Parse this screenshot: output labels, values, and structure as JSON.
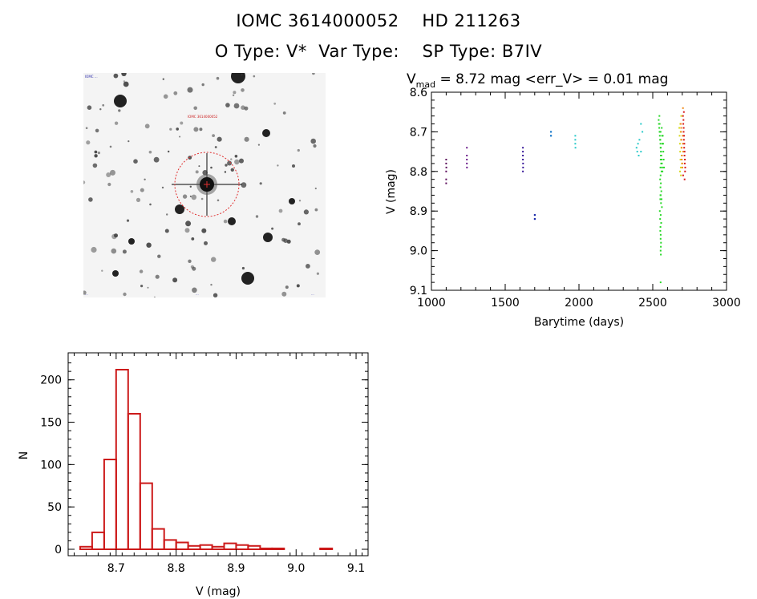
{
  "header": {
    "line1": "IOMC 3614000052    HD 211263",
    "line2": "O Type: V*  Var Type:    SP Type: B7IV"
  },
  "finder_chart": {
    "corner_labels": {
      "top_left": "IOMC ...",
      "target_label": "IOMC 3614000052",
      "bottom_left": "...",
      "bottom_center": "...",
      "bottom_right": "..."
    },
    "colors": {
      "background": "#f4f4f4",
      "stars": "#222222",
      "circle": "#e03030"
    }
  },
  "chart_data": [
    {
      "type": "scatter",
      "title_main": "V",
      "title_sub": "mad",
      "title_rest": " = 8.72 mag <err_V> = 0.01 mag",
      "xlabel": "Barytime (days)",
      "ylabel": "V (mag)",
      "xlim": [
        1000,
        3000
      ],
      "ylim": [
        8.6,
        9.1
      ],
      "y_inverted": true,
      "x_ticks": [
        1000,
        1500,
        2000,
        2500,
        3000
      ],
      "x_tick_labels": [
        "1000",
        "1500",
        "2000",
        "2500",
        "3000"
      ],
      "y_ticks": [
        8.6,
        8.7,
        8.8,
        8.9,
        9.0,
        9.1
      ],
      "y_tick_labels": [
        "8.6",
        "8.7",
        "8.8",
        "8.9",
        "9.0",
        "9.1"
      ],
      "series": [
        {
          "color": "#5a0a5a",
          "x": [
            1100,
            1100,
            1100,
            1100,
            1100,
            1101
          ],
          "y": [
            8.77,
            8.78,
            8.8,
            8.82,
            8.83,
            8.79
          ]
        },
        {
          "color": "#6a1a8a",
          "x": [
            1240,
            1240,
            1240,
            1240,
            1241
          ],
          "y": [
            8.74,
            8.76,
            8.77,
            8.78,
            8.79
          ]
        },
        {
          "color": "#3a1a9a",
          "x": [
            1620,
            1620,
            1620,
            1620,
            1621,
            1621,
            1620
          ],
          "y": [
            8.74,
            8.75,
            8.76,
            8.77,
            8.78,
            8.79,
            8.8
          ]
        },
        {
          "color": "#1a2aaa",
          "x": [
            1700,
            1701,
            1700,
            1701
          ],
          "y": [
            8.91,
            8.92,
            8.92,
            8.91
          ]
        },
        {
          "color": "#1a7aca",
          "x": [
            1810,
            1810,
            1811,
            1811
          ],
          "y": [
            8.7,
            8.71,
            8.7,
            8.71
          ]
        },
        {
          "color": "#2acaca",
          "x": [
            1975,
            1975,
            1976,
            1975,
            2390,
            2395,
            2400,
            2405,
            2410,
            2420,
            2430,
            2420
          ],
          "y": [
            8.72,
            8.73,
            8.74,
            8.71,
            8.74,
            8.75,
            8.73,
            8.76,
            8.72,
            8.68,
            8.7,
            8.75
          ]
        },
        {
          "color": "#2ad82a",
          "x": [
            2540,
            2542,
            2544,
            2546,
            2548,
            2550,
            2552,
            2554,
            2556,
            2558,
            2560,
            2562,
            2564,
            2566,
            2568,
            2570,
            2572,
            2574,
            2576,
            2545,
            2547,
            2549,
            2551,
            2553,
            2555,
            2557,
            2559,
            2561,
            2563,
            2565,
            2550,
            2552,
            2554,
            2556,
            2548,
            2550,
            2552,
            2554,
            2556,
            2558,
            2560,
            2562,
            2553,
            2555,
            2557,
            2551,
            2553,
            2555,
            2552,
            2554,
            2553,
            2553,
            2552,
            2554,
            2556,
            2555,
            2551,
            2553
          ],
          "y": [
            8.67,
            8.68,
            8.69,
            8.7,
            8.71,
            8.72,
            8.73,
            8.74,
            8.75,
            8.76,
            8.77,
            8.78,
            8.79,
            8.8,
            8.71,
            8.73,
            8.75,
            8.77,
            8.79,
            8.66,
            8.68,
            8.7,
            8.72,
            8.74,
            8.76,
            8.78,
            8.8,
            8.69,
            8.71,
            8.73,
            8.82,
            8.84,
            8.86,
            8.88,
            8.9,
            8.92,
            8.94,
            8.96,
            8.98,
            8.85,
            8.87,
            8.89,
            9.0,
            9.01,
            8.93,
            8.95,
            8.97,
            8.83,
            8.86,
            8.91,
            9.08,
            8.81,
            8.79,
            8.77,
            8.75,
            8.99,
            8.87,
            8.7
          ]
        },
        {
          "color": "#d8d81a",
          "x": [
            2680,
            2682,
            2684,
            2686,
            2688,
            2690,
            2692,
            2694,
            2696,
            2698,
            2685,
            2687,
            2689,
            2691,
            2693
          ],
          "y": [
            8.69,
            8.71,
            8.73,
            8.75,
            8.77,
            8.79,
            8.72,
            8.74,
            8.76,
            8.78,
            8.8,
            8.68,
            8.7,
            8.81,
            8.66
          ]
        },
        {
          "color": "#f08a1a",
          "x": [
            2690,
            2692,
            2694,
            2696,
            2698,
            2700,
            2702,
            2704,
            2706,
            2693,
            2697,
            2701,
            2705
          ],
          "y": [
            8.68,
            8.7,
            8.72,
            8.74,
            8.76,
            8.78,
            8.71,
            8.73,
            8.75,
            8.69,
            8.77,
            8.79,
            8.64
          ]
        },
        {
          "color": "#d81a1a",
          "x": [
            2705,
            2707,
            2709,
            2711,
            2713,
            2715,
            2717,
            2719,
            2708,
            2710,
            2712,
            2714,
            2716,
            2718,
            2720,
            2706,
            2711,
            2716
          ],
          "y": [
            8.66,
            8.68,
            8.7,
            8.72,
            8.74,
            8.76,
            8.78,
            8.8,
            8.67,
            8.69,
            8.71,
            8.73,
            8.75,
            8.77,
            8.79,
            8.81,
            8.65,
            8.82
          ]
        }
      ]
    },
    {
      "type": "bar",
      "subtype": "histogram",
      "xlabel": "V (mag)",
      "ylabel": "N",
      "xlim": [
        8.62,
        9.12
      ],
      "ylim": [
        0,
        230
      ],
      "bin_width": 0.02,
      "bin_starts": [
        8.64,
        8.66,
        8.68,
        8.7,
        8.72,
        8.74,
        8.76,
        8.78,
        8.8,
        8.82,
        8.84,
        8.86,
        8.88,
        8.9,
        8.92,
        8.94,
        8.96,
        8.98,
        9.0,
        9.02,
        9.04,
        9.06,
        9.08
      ],
      "values": [
        3,
        20,
        106,
        212,
        160,
        78,
        24,
        11,
        8,
        4,
        5,
        3,
        7,
        5,
        4,
        1,
        1,
        0,
        0,
        0,
        1,
        0,
        0
      ],
      "x_ticks": [
        8.7,
        8.8,
        8.9,
        9.0,
        9.1
      ],
      "x_tick_labels": [
        "8.7",
        "8.8",
        "8.9",
        "9.0",
        "9.1"
      ],
      "y_ticks": [
        0,
        50,
        100,
        150,
        200
      ],
      "y_tick_labels": [
        "0",
        "50",
        "100",
        "150",
        "200"
      ],
      "color": "#cc1a1a"
    }
  ]
}
